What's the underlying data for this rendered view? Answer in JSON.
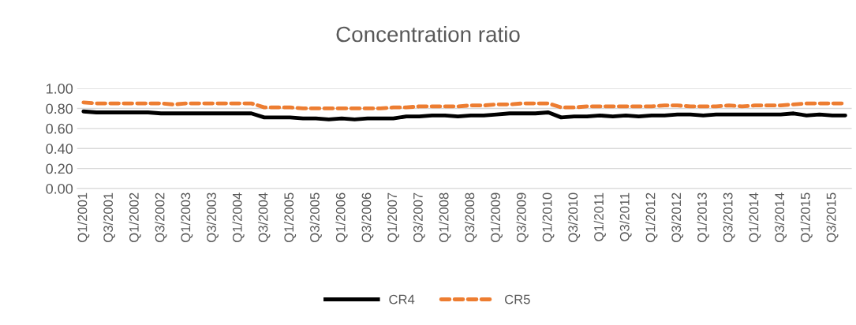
{
  "chart_data": {
    "type": "line",
    "title": "Concentration ratio",
    "categories": [
      "Q1/2001",
      null,
      "Q3/2001",
      null,
      "Q1/2002",
      null,
      "Q3/2002",
      null,
      "Q1/2003",
      null,
      "Q3/2003",
      null,
      "Q1/2004",
      null,
      "Q3/2004",
      null,
      "Q1/2005",
      null,
      "Q3/2005",
      null,
      "Q1/2006",
      null,
      "Q3/2006",
      null,
      "Q1/2007",
      null,
      "Q3/2007",
      null,
      "Q1/2008",
      null,
      "Q3/2008",
      null,
      "Q1/2009",
      null,
      "Q3/2009",
      null,
      "Q1/2010",
      null,
      "Q3/2010",
      null,
      "Q1/2011",
      null,
      "Q3/2011",
      null,
      "Q1/2012",
      null,
      "Q3/2012",
      null,
      "Q1/2013",
      null,
      "Q3/2013",
      null,
      "Q1/2014",
      null,
      "Q3/2014",
      null,
      "Q1/2015",
      null,
      "Q3/2015",
      null
    ],
    "series": [
      {
        "name": "CR4",
        "color": "#000000",
        "line_style": "solid",
        "values": [
          0.77,
          0.76,
          0.76,
          0.76,
          0.76,
          0.76,
          0.75,
          0.75,
          0.75,
          0.75,
          0.75,
          0.75,
          0.75,
          0.75,
          0.71,
          0.71,
          0.71,
          0.7,
          0.7,
          0.69,
          0.7,
          0.69,
          0.7,
          0.7,
          0.7,
          0.72,
          0.72,
          0.73,
          0.73,
          0.72,
          0.73,
          0.73,
          0.74,
          0.75,
          0.75,
          0.75,
          0.76,
          0.71,
          0.72,
          0.72,
          0.73,
          0.72,
          0.73,
          0.72,
          0.73,
          0.73,
          0.74,
          0.74,
          0.73,
          0.74,
          0.74,
          0.74,
          0.74,
          0.74,
          0.74,
          0.75,
          0.73,
          0.74,
          0.73,
          0.73
        ]
      },
      {
        "name": "CR5",
        "color": "#ed7d31",
        "line_style": "dashed",
        "values": [
          0.86,
          0.85,
          0.85,
          0.85,
          0.85,
          0.85,
          0.85,
          0.84,
          0.85,
          0.85,
          0.85,
          0.85,
          0.85,
          0.85,
          0.81,
          0.81,
          0.81,
          0.8,
          0.8,
          0.8,
          0.8,
          0.8,
          0.8,
          0.8,
          0.81,
          0.81,
          0.82,
          0.82,
          0.82,
          0.82,
          0.83,
          0.83,
          0.84,
          0.84,
          0.85,
          0.85,
          0.85,
          0.81,
          0.81,
          0.82,
          0.82,
          0.82,
          0.82,
          0.82,
          0.82,
          0.83,
          0.83,
          0.82,
          0.82,
          0.82,
          0.83,
          0.82,
          0.83,
          0.83,
          0.83,
          0.84,
          0.85,
          0.85,
          0.85,
          0.85
        ]
      }
    ],
    "ylim": [
      0,
      1
    ],
    "yticks": [
      {
        "value": 0,
        "label": "0.00"
      },
      {
        "value": 0.2,
        "label": "0.20"
      },
      {
        "value": 0.4,
        "label": "0.40"
      },
      {
        "value": 0.6,
        "label": "0.60"
      },
      {
        "value": 0.8,
        "label": "0.80"
      },
      {
        "value": 1,
        "label": "1.00"
      }
    ],
    "grid": "y",
    "legend": "bottom",
    "marker": "none"
  }
}
